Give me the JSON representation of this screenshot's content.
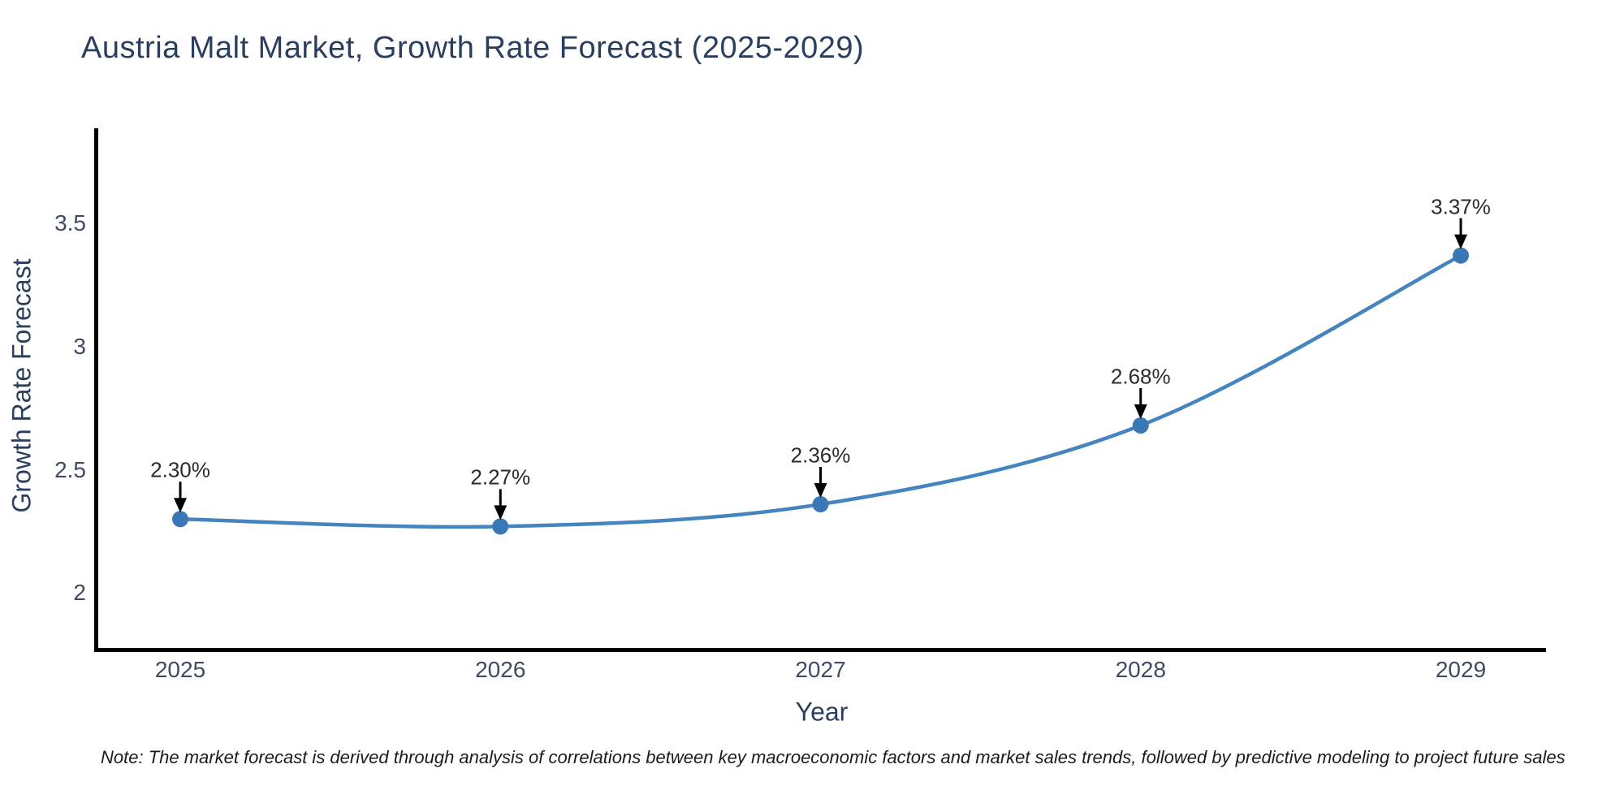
{
  "chart_data": {
    "type": "line",
    "line_shape": "spline",
    "title": "Austria Malt Market, Growth Rate Forecast (2025-2029)",
    "xlabel": "Year",
    "ylabel": "Growth Rate Forecast",
    "categories": [
      "2025",
      "2026",
      "2027",
      "2028",
      "2029"
    ],
    "series": [
      {
        "name": "Growth Rate Forecast",
        "values": [
          2.3,
          2.27,
          2.36,
          2.68,
          3.37
        ]
      }
    ],
    "point_labels": [
      "2.30%",
      "2.27%",
      "2.36%",
      "2.68%",
      "3.37%"
    ],
    "yticks": [
      2,
      2.5,
      3,
      3.5
    ],
    "ylim": [
      1.77,
      3.88
    ],
    "grid": false,
    "legend": false,
    "colors": {
      "line": "#4484bf",
      "marker": "#3a78b5",
      "annotation_text": "#2b2b2b",
      "annotation_arrow": "#000000",
      "axis_spine": "#000000",
      "title_text": "#2a3f5f",
      "tick_text": "#3f4b63"
    }
  },
  "footnote": "Note: The market forecast is derived through analysis of correlations between key macroeconomic factors and market sales trends, followed by predictive modeling to project future sales"
}
